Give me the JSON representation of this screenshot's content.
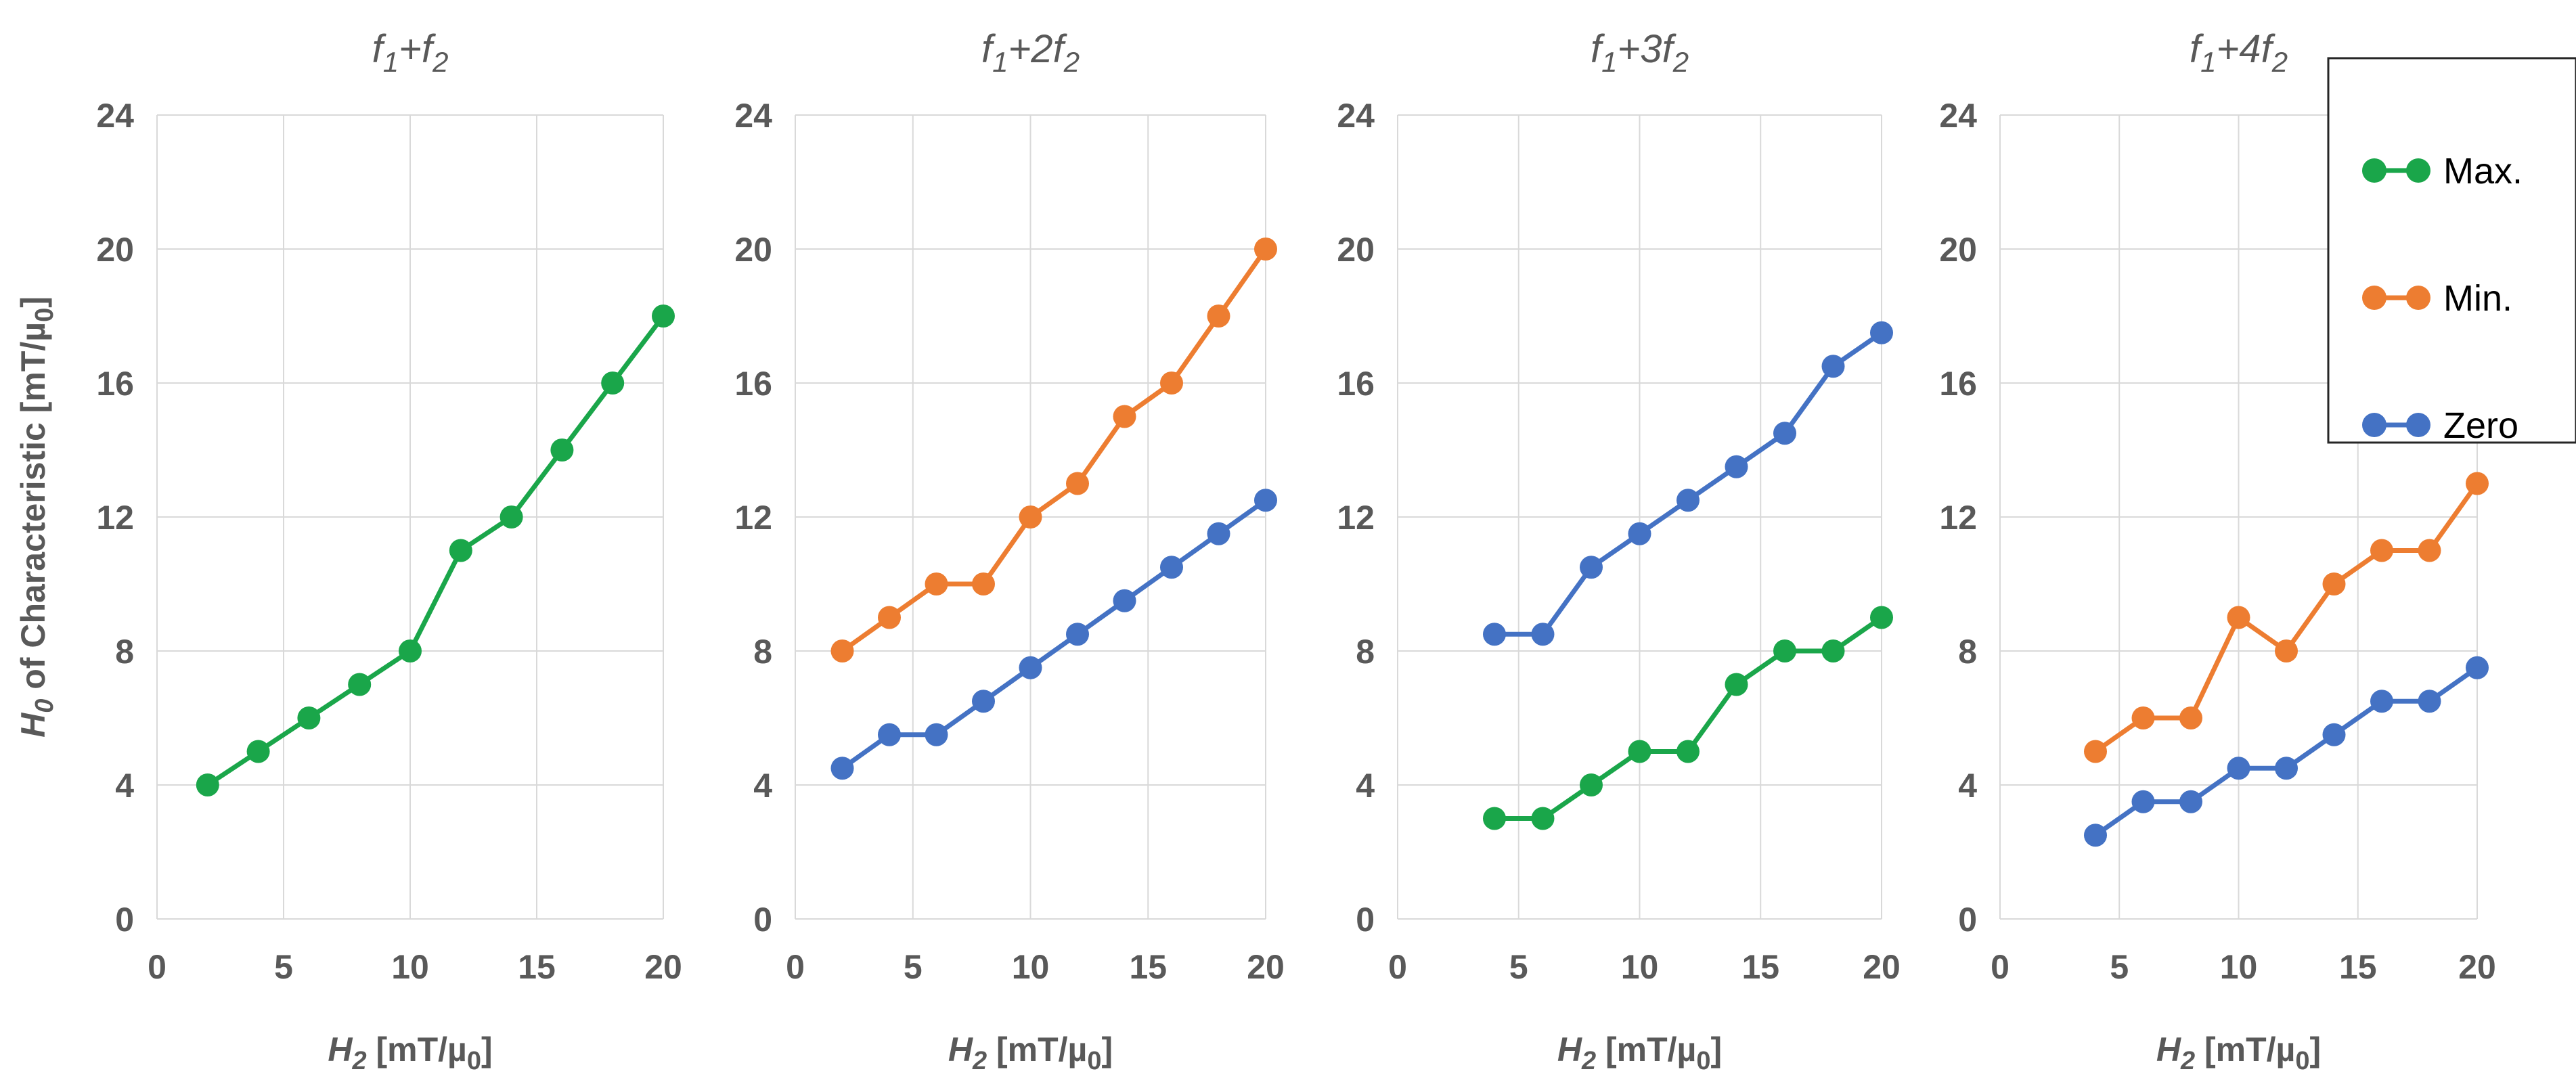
{
  "colors": {
    "Max.": "#1aa64a",
    "Min.": "#ed7d31",
    "Zero": "#4472c4",
    "grid": "#d9d9d9",
    "text": "#595959"
  },
  "ylabel": {
    "prefix": "H",
    "sub": "0",
    "suffix": " of Characteristic [mT/µ",
    "sub2": "0",
    "end": "]"
  },
  "xlabel": {
    "prefix": "H",
    "sub": "2",
    "suffix": " [mT/µ",
    "sub2": "0",
    "end": "]"
  },
  "legend": [
    {
      "name": "Max.",
      "color": "#1aa64a"
    },
    {
      "name": "Min.",
      "color": "#ed7d31"
    },
    {
      "name": "Zero",
      "color": "#4472c4"
    }
  ],
  "chart_data": [
    {
      "type": "line",
      "title": "f1+f2",
      "title_parts": [
        "f",
        "1",
        "+f",
        "2"
      ],
      "xlim": [
        0,
        20
      ],
      "ylim": [
        0,
        24
      ],
      "xticks": [
        0,
        5,
        10,
        15,
        20
      ],
      "yticks": [
        0,
        4,
        8,
        12,
        16,
        20,
        24
      ],
      "xlabel": "H2 [mT/µ0]",
      "ylabel": "H0 of Characteristic [mT/µ0]",
      "series": [
        {
          "name": "Max.",
          "points": [
            [
              2,
              4
            ],
            [
              4,
              5
            ],
            [
              6,
              6
            ],
            [
              8,
              7
            ],
            [
              10,
              8
            ],
            [
              12,
              11
            ],
            [
              14,
              12
            ],
            [
              16,
              14
            ],
            [
              18,
              16
            ],
            [
              20,
              18
            ]
          ]
        }
      ]
    },
    {
      "type": "line",
      "title": "f1+2f2",
      "title_parts": [
        "f",
        "1",
        "+2f",
        "2"
      ],
      "xlim": [
        0,
        20
      ],
      "ylim": [
        0,
        24
      ],
      "xticks": [
        0,
        5,
        10,
        15,
        20
      ],
      "yticks": [
        0,
        4,
        8,
        12,
        16,
        20,
        24
      ],
      "xlabel": "H2 [mT/µ0]",
      "series": [
        {
          "name": "Min.",
          "points": [
            [
              2,
              8
            ],
            [
              4,
              9
            ],
            [
              6,
              10
            ],
            [
              8,
              10
            ],
            [
              10,
              12
            ],
            [
              12,
              13
            ],
            [
              14,
              15
            ],
            [
              16,
              16
            ],
            [
              18,
              18
            ],
            [
              20,
              20
            ]
          ]
        },
        {
          "name": "Zero",
          "points": [
            [
              2,
              4.5
            ],
            [
              4,
              5.5
            ],
            [
              6,
              5.5
            ],
            [
              8,
              6.5
            ],
            [
              10,
              7.5
            ],
            [
              12,
              8.5
            ],
            [
              14,
              9.5
            ],
            [
              16,
              10.5
            ],
            [
              18,
              11.5
            ],
            [
              20,
              12.5
            ]
          ]
        }
      ]
    },
    {
      "type": "line",
      "title": "f1+3f2",
      "title_parts": [
        "f",
        "1",
        "+3f",
        "2"
      ],
      "xlim": [
        0,
        20
      ],
      "ylim": [
        0,
        24
      ],
      "xticks": [
        0,
        5,
        10,
        15,
        20
      ],
      "yticks": [
        0,
        4,
        8,
        12,
        16,
        20,
        24
      ],
      "xlabel": "H2 [mT/µ0]",
      "series": [
        {
          "name": "Zero",
          "points": [
            [
              4,
              8.5
            ],
            [
              6,
              8.5
            ],
            [
              8,
              10.5
            ],
            [
              10,
              11.5
            ],
            [
              12,
              12.5
            ],
            [
              14,
              13.5
            ],
            [
              16,
              14.5
            ],
            [
              18,
              16.5
            ],
            [
              20,
              17.5
            ]
          ]
        },
        {
          "name": "Max.",
          "points": [
            [
              4,
              3
            ],
            [
              6,
              3
            ],
            [
              8,
              4
            ],
            [
              10,
              5
            ],
            [
              12,
              5
            ],
            [
              14,
              7
            ],
            [
              16,
              8
            ],
            [
              18,
              8
            ],
            [
              20,
              9
            ]
          ]
        }
      ]
    },
    {
      "type": "line",
      "title": "f1+4f2",
      "title_parts": [
        "f",
        "1",
        "+4f",
        "2"
      ],
      "xlim": [
        0,
        20
      ],
      "ylim": [
        0,
        24
      ],
      "xticks": [
        0,
        5,
        10,
        15,
        20
      ],
      "yticks": [
        0,
        4,
        8,
        12,
        16,
        20,
        24
      ],
      "xlabel": "H2 [mT/µ0]",
      "series": [
        {
          "name": "Min.",
          "points": [
            [
              4,
              5
            ],
            [
              6,
              6
            ],
            [
              8,
              6
            ],
            [
              10,
              9
            ],
            [
              12,
              8
            ],
            [
              14,
              10
            ],
            [
              16,
              11
            ],
            [
              18,
              11
            ],
            [
              20,
              13
            ]
          ]
        },
        {
          "name": "Zero",
          "points": [
            [
              4,
              2.5
            ],
            [
              6,
              3.5
            ],
            [
              8,
              3.5
            ],
            [
              10,
              4.5
            ],
            [
              12,
              4.5
            ],
            [
              14,
              5.5
            ],
            [
              16,
              6.5
            ],
            [
              18,
              6.5
            ],
            [
              20,
              7.5
            ]
          ]
        }
      ]
    }
  ]
}
